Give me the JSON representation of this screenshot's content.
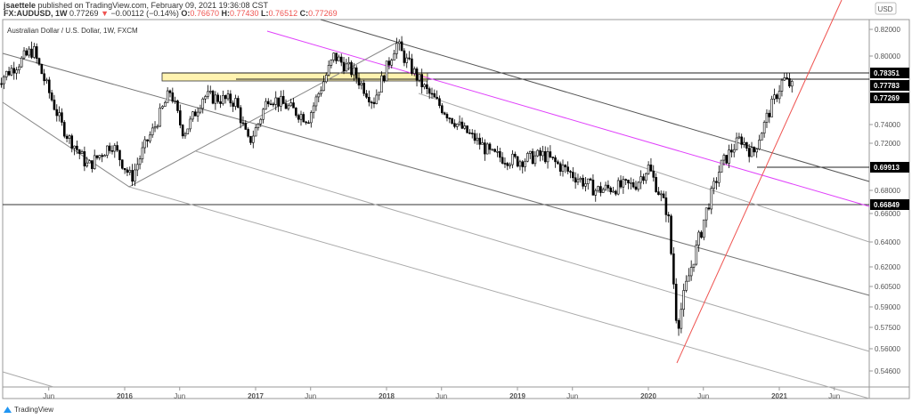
{
  "header": {
    "author": "jsaettele",
    "published": "published on TradingView.com, February 09, 2021 19:36:08 CST",
    "symbol": "FX:AUDUSD, 1W",
    "last": "0.77269",
    "change_arrow": "▼",
    "change": "−0.00112 (−0.14%)",
    "o_label": "O:",
    "o": "0.76670",
    "h_label": "H:",
    "h": "0.77430",
    "l_label": "L:",
    "l": "0.76512",
    "c_label": "C:",
    "c": "0.77269"
  },
  "legend": "Australian Dollar / U.S. Dollar, 1W, FXCM",
  "currency": "USD",
  "colors": {
    "up": "#ffffff",
    "down": "#000000",
    "pink": "#e040fb",
    "red": "#ef5350",
    "zone": "#fff3b0"
  },
  "chart_data": {
    "type": "candlestick",
    "price_ticks": [
      "0.82000",
      "0.80000",
      "0.74000",
      "0.72000",
      "0.68000",
      "0.66000",
      "0.64000",
      "0.62000",
      "0.60500",
      "0.59000",
      "0.57500",
      "0.56000",
      "0.54600"
    ],
    "price_labels": [
      "0.78351",
      "0.77783",
      "0.77269",
      "0.69913",
      "0.66849"
    ],
    "time_ticks": [
      "Jun",
      "2016",
      "Jun",
      "2017",
      "Jun",
      "2018",
      "Jun",
      "2019",
      "Jun",
      "2020",
      "Jun",
      "2021",
      "Jun"
    ],
    "approx_path": [
      [
        2015.0,
        0.775
      ],
      [
        2015.15,
        0.79
      ],
      [
        2015.3,
        0.805
      ],
      [
        2015.55,
        0.73
      ],
      [
        2015.72,
        0.7
      ],
      [
        2015.9,
        0.72
      ],
      [
        2016.05,
        0.69
      ],
      [
        2016.35,
        0.77
      ],
      [
        2016.45,
        0.73
      ],
      [
        2016.6,
        0.765
      ],
      [
        2016.85,
        0.76
      ],
      [
        2016.95,
        0.72
      ],
      [
        2017.1,
        0.765
      ],
      [
        2017.4,
        0.745
      ],
      [
        2017.6,
        0.8
      ],
      [
        2017.75,
        0.785
      ],
      [
        2017.9,
        0.76
      ],
      [
        2018.07,
        0.81
      ],
      [
        2018.3,
        0.77
      ],
      [
        2018.5,
        0.745
      ],
      [
        2018.8,
        0.71
      ],
      [
        2019.0,
        0.705
      ],
      [
        2019.2,
        0.71
      ],
      [
        2019.6,
        0.68
      ],
      [
        2019.9,
        0.685
      ],
      [
        2020.0,
        0.7
      ],
      [
        2020.15,
        0.66
      ],
      [
        2020.22,
        0.575
      ],
      [
        2020.3,
        0.61
      ],
      [
        2020.45,
        0.665
      ],
      [
        2020.55,
        0.7
      ],
      [
        2020.7,
        0.725
      ],
      [
        2020.8,
        0.71
      ],
      [
        2020.9,
        0.745
      ],
      [
        2021.03,
        0.78
      ],
      [
        2021.1,
        0.7727
      ]
    ]
  },
  "footer": {
    "brand": "TradingView"
  }
}
